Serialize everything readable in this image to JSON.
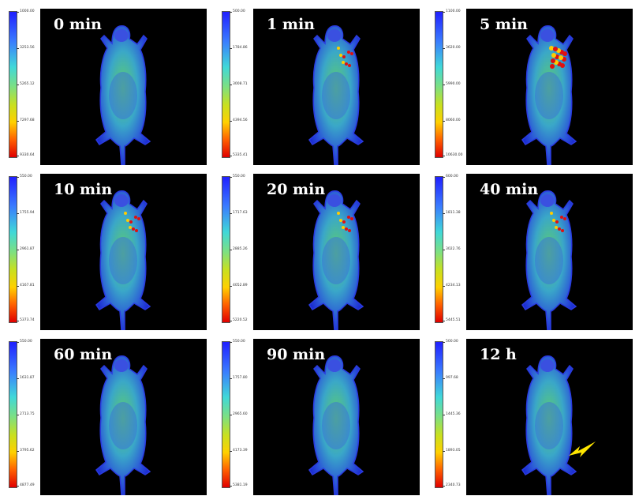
{
  "panels": [
    {
      "label": "0 min",
      "ticks": [
        "1000.00",
        "3253.56",
        "5265.12",
        "7297.68",
        "9330.64"
      ]
    },
    {
      "label": "1 min",
      "ticks": [
        "500.00",
        "1784.86",
        "3008.71",
        "4394.56",
        "5335.41"
      ]
    },
    {
      "label": "5 min",
      "ticks": [
        "1100.00",
        "3620.00",
        "5990.00",
        "8060.00",
        "10630.00"
      ]
    },
    {
      "label": "10 min",
      "ticks": [
        "550.00",
        "1755.94",
        "2961.87",
        "4167.81",
        "5373.74"
      ]
    },
    {
      "label": "20 min",
      "ticks": [
        "550.00",
        "1717.63",
        "2885.26",
        "4052.89",
        "5220.52"
      ]
    },
    {
      "label": "40 min",
      "ticks": [
        "600.00",
        "1811.38",
        "3022.76",
        "4234.13",
        "5445.51"
      ]
    },
    {
      "label": "60 min",
      "ticks": [
        "550.00",
        "1631.87",
        "2713.75",
        "3795.62",
        "4877.49"
      ]
    },
    {
      "label": "90 min",
      "ticks": [
        "550.00",
        "1757.80",
        "2965.60",
        "4173.39",
        "5381.19"
      ]
    },
    {
      "label": "12 h",
      "ticks": [
        "500.00",
        "997.68",
        "1445.36",
        "1893.05",
        "2340.73"
      ],
      "arrow": true
    }
  ],
  "colors": {
    "background": "#000000",
    "label": "#ffffff",
    "arrow": "#ffe600"
  }
}
